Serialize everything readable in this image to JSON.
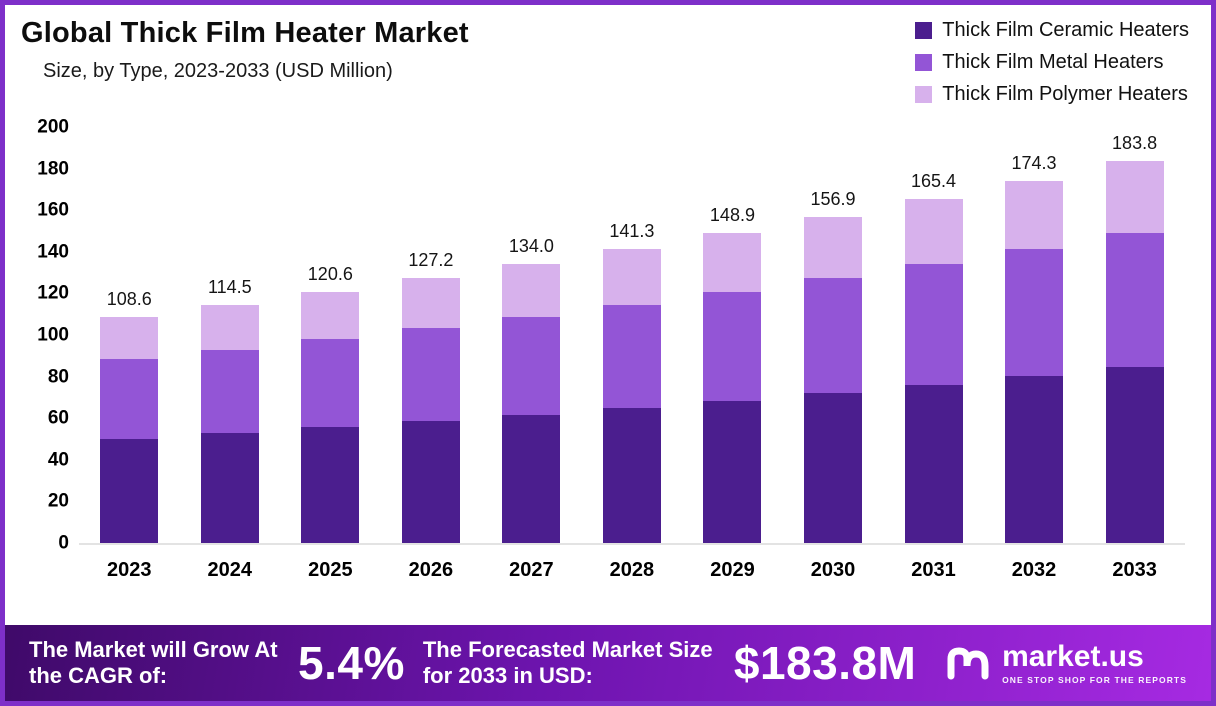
{
  "header": {
    "title": "Global Thick Film Heater Market",
    "subtitle": "Size, by Type, 2023-2033 (USD Million)"
  },
  "legend": [
    {
      "label": "Thick Film Ceramic Heaters",
      "color": "#4b1e8e"
    },
    {
      "label": "Thick Film Metal Heaters",
      "color": "#9355d6"
    },
    {
      "label": "Thick Film Polymer Heaters",
      "color": "#d7b1ec"
    }
  ],
  "chart_data": {
    "type": "bar",
    "stacked": true,
    "title": "Global Thick Film Heater Market Size, by Type, 2023-2033 (USD Million)",
    "xlabel": "",
    "ylabel": "USD Million",
    "ylim": [
      0,
      200
    ],
    "yticks": [
      0,
      20,
      40,
      60,
      80,
      100,
      120,
      140,
      160,
      180,
      200
    ],
    "grid": false,
    "legend_position": "top-right",
    "categories": [
      "2023",
      "2024",
      "2025",
      "2026",
      "2027",
      "2028",
      "2029",
      "2030",
      "2031",
      "2032",
      "2033"
    ],
    "series": [
      {
        "name": "Thick Film Ceramic Heaters",
        "values": [
          50.2,
          52.8,
          55.6,
          58.6,
          61.7,
          65.0,
          68.5,
          72.2,
          76.1,
          80.2,
          84.6
        ]
      },
      {
        "name": "Thick Film Metal Heaters",
        "values": [
          38.1,
          40.2,
          42.3,
          44.6,
          47.0,
          49.5,
          52.2,
          55.0,
          58.0,
          61.1,
          64.4
        ]
      },
      {
        "name": "Thick Film Polymer Heaters",
        "values": [
          20.3,
          21.5,
          22.7,
          24.0,
          25.3,
          26.8,
          28.2,
          29.7,
          31.3,
          33.0,
          34.8
        ]
      }
    ],
    "totals": [
      108.6,
      114.5,
      120.6,
      127.2,
      134.0,
      141.3,
      148.9,
      156.9,
      165.4,
      174.3,
      183.8
    ]
  },
  "footer": {
    "cagr_label": "The Market will Grow At the CAGR of:",
    "cagr_value": "5.4%",
    "forecast_label": "The Forecasted Market Size for 2033 in USD:",
    "forecast_value": "$183.8M",
    "brand": "market.us",
    "brand_tagline": "ONE STOP SHOP FOR THE REPORTS"
  }
}
